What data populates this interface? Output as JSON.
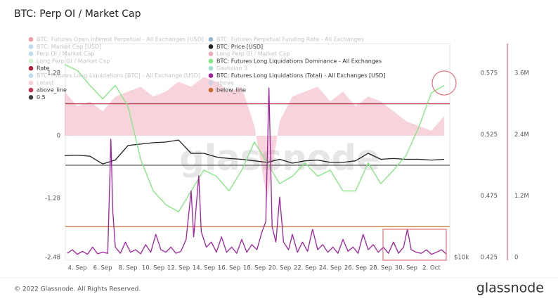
{
  "chart_data": {
    "type": "line",
    "title": "BTC: Perp OI / Market Cap",
    "watermark": "glassnode",
    "copyright": "© 2022 Glassnode. All Rights Reserved.",
    "logo": "glassnode",
    "xlim": [
      3.05,
      33.45
    ],
    "xticks": [
      {
        "value": 4,
        "label": "4. Sep"
      },
      {
        "value": 6,
        "label": "6. Sep"
      },
      {
        "value": 8,
        "label": "8. Sep"
      },
      {
        "value": 10,
        "label": "10. Sep"
      },
      {
        "value": 12,
        "label": "12. Sep"
      },
      {
        "value": 14,
        "label": "14. Sep"
      },
      {
        "value": 16,
        "label": "16. Sep"
      },
      {
        "value": 18,
        "label": "18. Sep"
      },
      {
        "value": 20,
        "label": "20. Sep"
      },
      {
        "value": 22,
        "label": "22. Sep"
      },
      {
        "value": 24,
        "label": "24. Sep"
      },
      {
        "value": 26,
        "label": "26. Sep"
      },
      {
        "value": 28,
        "label": "28. Sep"
      },
      {
        "value": 30,
        "label": "30. Sep"
      },
      {
        "value": 32,
        "label": "2. Oct"
      }
    ],
    "ylim": [
      -2.54,
      1.88
    ],
    "yticks": [
      1.28,
      0,
      -1.28,
      -2.48
    ],
    "y2lim": [
      0.4227,
      0.599
    ],
    "y2ticks": [
      0.575,
      0.525,
      0.475,
      0.425
    ],
    "y3lim": [
      -55000,
      4177000
    ],
    "y3ticks": [
      {
        "value": 3600000,
        "label": "3.6M"
      },
      {
        "value": 2400000,
        "label": "2.4M"
      },
      {
        "value": 1200000,
        "label": "1.2M"
      },
      0
    ],
    "y4lim": [
      9810,
      42400
    ],
    "y4log": true,
    "y4ticks": [
      {
        "value": 10000,
        "label": "$10k"
      }
    ],
    "series": [
      {
        "name": "BTC: Futures Open Interest Perpetual - All Exchanges [USD]",
        "color": "#e04040",
        "active": false
      },
      {
        "name": "BTC: Market Cap [USD]",
        "color": "#7fb8e0",
        "active": false
      },
      {
        "name": "Perp OI / Market Cap",
        "color": "#7fb8e0",
        "active": false
      },
      {
        "name": "Long Perp OI / Market Cap",
        "color": "#9be89b",
        "active": false
      },
      {
        "name": "Rate",
        "color": "#b0203a",
        "active": true
      },
      {
        "name": "BTC: Futures Long Liquidations [BTC] - All Exchange [USD]",
        "color": "#7fb8e0",
        "active": false
      },
      {
        "name": "Latest",
        "color": "#f0a0b0",
        "active": false
      },
      {
        "name": "above_line",
        "color": "#c0334d",
        "active": true,
        "style": "hline",
        "axis": "y2",
        "values": [
          0.55
        ]
      },
      {
        "name": "0.5",
        "color": "#444444",
        "active": true,
        "style": "hline",
        "axis": "y2",
        "values": [
          0.5
        ]
      },
      {
        "name": "BTC: Futures Perpetual Funding Rate - All Exchanges",
        "color": "#2f6fb0",
        "active": false
      },
      {
        "name": "BTC: Price [USD]",
        "color": "#222222",
        "active": true,
        "style": "line",
        "axis": "y4",
        "x": [
          3,
          4,
          5,
          6,
          7,
          8,
          9,
          10,
          11,
          12,
          13,
          14,
          15,
          16,
          17,
          18,
          19,
          20,
          21,
          22,
          23,
          24,
          25,
          26,
          27,
          28,
          29,
          30,
          31,
          32,
          33
        ],
        "values": [
          19900,
          19950,
          19800,
          18800,
          19300,
          21300,
          21500,
          21700,
          21800,
          22100,
          20200,
          20200,
          19700,
          19500,
          19400,
          19200,
          19000,
          19400,
          18900,
          19200,
          19300,
          19000,
          19000,
          19200,
          20200,
          19400,
          19500,
          19400,
          19400,
          19300,
          19400
        ]
      },
      {
        "name": "Long Perp OI / Market Cap",
        "color": "#e05570",
        "active": false,
        "style": "area",
        "axis": "y",
        "x": [
          3,
          4,
          5,
          6,
          7,
          8,
          9,
          10,
          11,
          12,
          13,
          14,
          15,
          16,
          17,
          18,
          19,
          20,
          21,
          22,
          23,
          24,
          25,
          26,
          27,
          28,
          29,
          30,
          31,
          32,
          33
        ],
        "values": [
          0.9,
          0.6,
          0.7,
          0.5,
          0.8,
          0.9,
          1.0,
          0.8,
          0.9,
          1.1,
          1.0,
          1.2,
          1.1,
          0.9,
          1.0,
          0.2,
          -1.3,
          0.3,
          0.8,
          0.9,
          1.0,
          0.7,
          0.9,
          0.6,
          0.8,
          0.7,
          0.5,
          0.3,
          0.2,
          0.1,
          0.4
        ]
      },
      {
        "name": "BTC: Futures Long Liquidations Dominance - All Exchanges",
        "color": "#7ee87e",
        "active": true,
        "style": "line",
        "axis": "y2",
        "x": [
          3,
          4,
          5,
          6,
          7,
          8,
          9,
          10,
          11,
          12,
          13,
          14,
          15,
          16,
          17,
          18,
          19,
          20,
          21,
          22,
          23,
          24,
          25,
          26,
          27,
          28,
          29,
          30,
          31,
          32,
          33
        ],
        "values": [
          0.582,
          0.577,
          0.565,
          0.554,
          0.565,
          0.548,
          0.505,
          0.479,
          0.468,
          0.462,
          0.479,
          0.496,
          0.491,
          0.479,
          0.496,
          0.519,
          0.502,
          0.485,
          0.491,
          0.502,
          0.491,
          0.496,
          0.479,
          0.479,
          0.502,
          0.485,
          0.496,
          0.508,
          0.531,
          0.559,
          0.565
        ]
      },
      {
        "name": "Gaussian 5",
        "color": "#40c0a0",
        "active": false
      },
      {
        "name": "BTC: Futures Long Liquidations (Total) - All Exchanges [USD]",
        "color": "#a020a0",
        "active": true,
        "style": "line",
        "axis": "y3",
        "x": [
          3.2,
          3.6,
          4.0,
          4.4,
          4.8,
          5.2,
          5.6,
          6.0,
          6.4,
          6.65,
          6.8,
          7.0,
          7.4,
          7.8,
          8.2,
          8.6,
          9.0,
          9.4,
          9.8,
          10.2,
          10.6,
          11.0,
          11.4,
          11.8,
          12.2,
          12.6,
          13.0,
          13.2,
          13.6,
          13.8,
          14.2,
          14.6,
          15.0,
          15.4,
          15.8,
          16.2,
          16.6,
          17.0,
          17.4,
          17.8,
          18.2,
          18.6,
          18.9,
          19.15,
          19.4,
          19.7,
          20.0,
          20.3,
          20.7,
          21.0,
          21.4,
          21.8,
          22.2,
          22.6,
          23.0,
          23.4,
          23.8,
          24.2,
          24.6,
          25.0,
          25.4,
          25.8,
          26.2,
          26.6,
          27.0,
          27.4,
          27.8,
          28.2,
          28.6,
          29.0,
          29.4,
          29.8,
          30.1,
          30.4,
          30.8,
          31.2,
          31.6,
          32.0,
          32.4,
          32.8,
          33.2
        ],
        "values": [
          80000,
          150000,
          60000,
          120000,
          60000,
          200000,
          70000,
          100000,
          80000,
          2310000,
          900000,
          200000,
          80000,
          300000,
          100000,
          150000,
          70000,
          250000,
          100000,
          450000,
          150000,
          100000,
          200000,
          80000,
          120000,
          350000,
          1300000,
          400000,
          1600000,
          500000,
          200000,
          300000,
          100000,
          400000,
          100000,
          200000,
          80000,
          350000,
          100000,
          250000,
          150000,
          500000,
          700000,
          3310000,
          600000,
          300000,
          1180000,
          300000,
          150000,
          450000,
          100000,
          300000,
          120000,
          550000,
          150000,
          250000,
          100000,
          200000,
          80000,
          350000,
          120000,
          200000,
          80000,
          450000,
          150000,
          250000,
          100000,
          200000,
          80000,
          300000,
          80000,
          200000,
          550000,
          150000,
          100000,
          80000,
          150000,
          60000,
          100000,
          150000,
          60000
        ]
      },
      {
        "name": "above",
        "color": "#9fd0f0",
        "active": false
      },
      {
        "name": "below_line",
        "color": "#c8682a",
        "active": true,
        "style": "hline",
        "axis": "y2",
        "values": [
          0.45
        ]
      }
    ]
  }
}
